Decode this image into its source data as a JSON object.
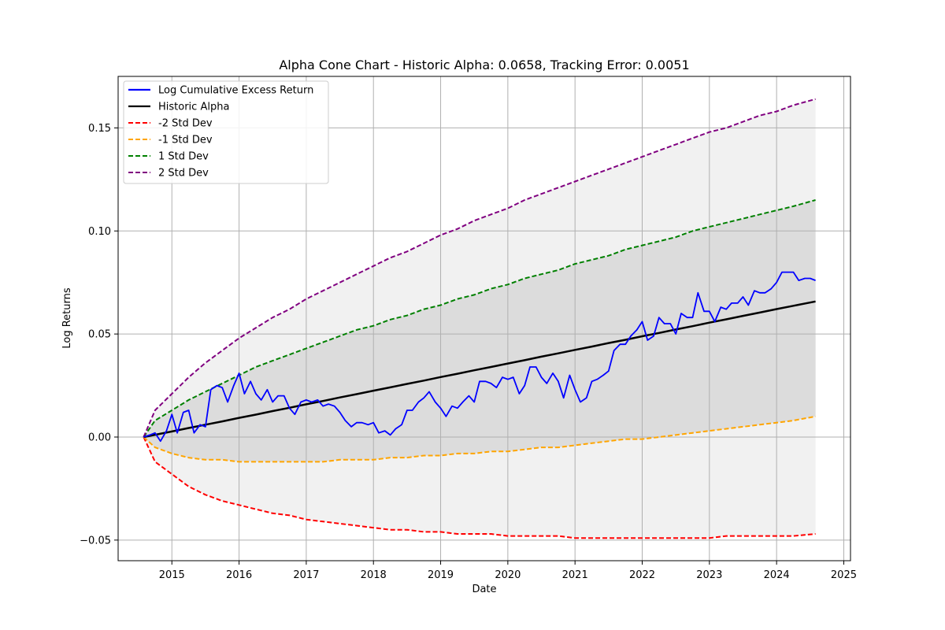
{
  "chart_data": {
    "type": "line",
    "title": "Alpha Cone Chart - Historic Alpha: 0.0658, Tracking Error: 0.0051",
    "xlabel": "Date",
    "ylabel": "Log Returns",
    "xlim": [
      2014.2,
      2025.1
    ],
    "ylim": [
      -0.06,
      0.175
    ],
    "x_ticks": [
      2015,
      2016,
      2017,
      2018,
      2019,
      2020,
      2021,
      2022,
      2023,
      2024,
      2025
    ],
    "x_tick_labels": [
      "2015",
      "2016",
      "2017",
      "2018",
      "2019",
      "2020",
      "2021",
      "2022",
      "2023",
      "2024",
      "2025"
    ],
    "y_ticks": [
      -0.05,
      0.0,
      0.05,
      0.1,
      0.15
    ],
    "y_tick_labels": [
      "−0.05",
      "0.00",
      "0.05",
      "0.10",
      "0.15"
    ],
    "grid": true,
    "legend_position": "upper-left",
    "x": [
      2014.58,
      2014.75,
      2015.0,
      2015.25,
      2015.5,
      2015.75,
      2016.0,
      2016.25,
      2016.5,
      2016.75,
      2017.0,
      2017.25,
      2017.5,
      2017.75,
      2018.0,
      2018.25,
      2018.5,
      2018.75,
      2019.0,
      2019.25,
      2019.5,
      2019.75,
      2020.0,
      2020.25,
      2020.5,
      2020.75,
      2021.0,
      2021.25,
      2021.5,
      2021.75,
      2022.0,
      2022.25,
      2022.5,
      2022.75,
      2023.0,
      2023.25,
      2023.5,
      2023.75,
      2024.0,
      2024.25,
      2024.58
    ],
    "series": [
      {
        "name": "Log Cumulative Excess Return",
        "color": "#0000ff",
        "style": "solid",
        "x": [
          2014.58,
          2014.67,
          2014.75,
          2014.83,
          2014.92,
          2015.0,
          2015.08,
          2015.17,
          2015.25,
          2015.33,
          2015.42,
          2015.5,
          2015.58,
          2015.67,
          2015.75,
          2015.83,
          2015.92,
          2016.0,
          2016.08,
          2016.17,
          2016.25,
          2016.33,
          2016.42,
          2016.5,
          2016.58,
          2016.67,
          2016.75,
          2016.83,
          2016.92,
          2017.0,
          2017.08,
          2017.17,
          2017.25,
          2017.33,
          2017.42,
          2017.5,
          2017.58,
          2017.67,
          2017.75,
          2017.83,
          2017.92,
          2018.0,
          2018.08,
          2018.17,
          2018.25,
          2018.33,
          2018.42,
          2018.5,
          2018.58,
          2018.67,
          2018.75,
          2018.83,
          2018.92,
          2019.0,
          2019.08,
          2019.17,
          2019.25,
          2019.33,
          2019.42,
          2019.5,
          2019.58,
          2019.67,
          2019.75,
          2019.83,
          2019.92,
          2020.0,
          2020.08,
          2020.17,
          2020.25,
          2020.33,
          2020.42,
          2020.5,
          2020.58,
          2020.67,
          2020.75,
          2020.83,
          2020.92,
          2021.0,
          2021.08,
          2021.17,
          2021.25,
          2021.33,
          2021.42,
          2021.5,
          2021.58,
          2021.67,
          2021.75,
          2021.83,
          2021.92,
          2022.0,
          2022.08,
          2022.17,
          2022.25,
          2022.33,
          2022.42,
          2022.5,
          2022.58,
          2022.67,
          2022.75,
          2022.83,
          2022.92,
          2023.0,
          2023.08,
          2023.17,
          2023.25,
          2023.33,
          2023.42,
          2023.5,
          2023.58,
          2023.67,
          2023.75,
          2023.83,
          2023.92,
          2024.0,
          2024.08,
          2024.17,
          2024.25,
          2024.33,
          2024.42,
          2024.5,
          2024.58
        ],
        "values": [
          0.0,
          0.001,
          0.002,
          -0.002,
          0.003,
          0.011,
          0.002,
          0.012,
          0.013,
          0.002,
          0.006,
          0.005,
          0.023,
          0.025,
          0.024,
          0.017,
          0.025,
          0.031,
          0.021,
          0.027,
          0.021,
          0.018,
          0.023,
          0.017,
          0.02,
          0.02,
          0.014,
          0.011,
          0.017,
          0.018,
          0.017,
          0.018,
          0.015,
          0.016,
          0.015,
          0.012,
          0.008,
          0.005,
          0.007,
          0.007,
          0.006,
          0.007,
          0.002,
          0.003,
          0.001,
          0.004,
          0.006,
          0.013,
          0.013,
          0.017,
          0.019,
          0.022,
          0.017,
          0.014,
          0.01,
          0.015,
          0.014,
          0.017,
          0.02,
          0.017,
          0.027,
          0.027,
          0.026,
          0.024,
          0.029,
          0.028,
          0.029,
          0.021,
          0.025,
          0.034,
          0.034,
          0.029,
          0.026,
          0.031,
          0.027,
          0.019,
          0.03,
          0.023,
          0.017,
          0.019,
          0.027,
          0.028,
          0.03,
          0.032,
          0.042,
          0.045,
          0.045,
          0.049,
          0.052,
          0.056,
          0.047,
          0.049,
          0.058,
          0.055,
          0.055,
          0.05,
          0.06,
          0.058,
          0.058,
          0.07,
          0.061,
          0.061,
          0.056,
          0.063,
          0.062,
          0.065,
          0.065,
          0.068,
          0.064,
          0.071,
          0.07,
          0.07,
          0.072,
          0.075,
          0.08,
          0.08,
          0.08,
          0.076,
          0.077,
          0.077,
          0.076
        ]
      },
      {
        "name": "Historic Alpha",
        "color": "#000000",
        "style": "solid",
        "values": [
          0.0,
          0.0011,
          0.0027,
          0.0044,
          0.006,
          0.0076,
          0.0093,
          0.0109,
          0.0126,
          0.0142,
          0.0159,
          0.0175,
          0.0192,
          0.0208,
          0.0225,
          0.0241,
          0.0258,
          0.0274,
          0.0291,
          0.0307,
          0.0324,
          0.034,
          0.0357,
          0.0373,
          0.039,
          0.0406,
          0.0423,
          0.0439,
          0.0456,
          0.0472,
          0.0489,
          0.0505,
          0.0522,
          0.0538,
          0.0555,
          0.0571,
          0.0588,
          0.0604,
          0.0621,
          0.0637,
          0.0658
        ]
      },
      {
        "name": "-2 Std Dev",
        "color": "#ff0000",
        "style": "dashed",
        "values": [
          0.0,
          -0.012,
          -0.018,
          -0.024,
          -0.028,
          -0.031,
          -0.033,
          -0.035,
          -0.037,
          -0.038,
          -0.04,
          -0.041,
          -0.042,
          -0.043,
          -0.044,
          -0.045,
          -0.045,
          -0.046,
          -0.046,
          -0.047,
          -0.047,
          -0.047,
          -0.048,
          -0.048,
          -0.048,
          -0.048,
          -0.049,
          -0.049,
          -0.049,
          -0.049,
          -0.049,
          -0.049,
          -0.049,
          -0.049,
          -0.049,
          -0.048,
          -0.048,
          -0.048,
          -0.048,
          -0.048,
          -0.047
        ]
      },
      {
        "name": "-1 Std Dev",
        "color": "#ffa500",
        "style": "dashed",
        "values": [
          0.0,
          -0.005,
          -0.008,
          -0.01,
          -0.011,
          -0.011,
          -0.012,
          -0.012,
          -0.012,
          -0.012,
          -0.012,
          -0.012,
          -0.011,
          -0.011,
          -0.011,
          -0.01,
          -0.01,
          -0.009,
          -0.009,
          -0.008,
          -0.008,
          -0.007,
          -0.007,
          -0.006,
          -0.005,
          -0.005,
          -0.004,
          -0.003,
          -0.002,
          -0.001,
          -0.001,
          0.0,
          0.001,
          0.002,
          0.003,
          0.004,
          0.005,
          0.006,
          0.007,
          0.008,
          0.01
        ]
      },
      {
        "name": "1 Std Dev",
        "color": "#008000",
        "style": "dashed",
        "values": [
          0.0,
          0.008,
          0.013,
          0.018,
          0.022,
          0.026,
          0.03,
          0.034,
          0.037,
          0.04,
          0.043,
          0.046,
          0.049,
          0.052,
          0.054,
          0.057,
          0.059,
          0.062,
          0.064,
          0.067,
          0.069,
          0.072,
          0.074,
          0.077,
          0.079,
          0.081,
          0.084,
          0.086,
          0.088,
          0.091,
          0.093,
          0.095,
          0.097,
          0.1,
          0.102,
          0.104,
          0.106,
          0.108,
          0.11,
          0.112,
          0.115
        ]
      },
      {
        "name": "2 Std Dev",
        "color": "#800080",
        "style": "dashed",
        "values": [
          0.0,
          0.013,
          0.021,
          0.029,
          0.036,
          0.042,
          0.048,
          0.053,
          0.058,
          0.062,
          0.067,
          0.071,
          0.075,
          0.079,
          0.083,
          0.087,
          0.09,
          0.094,
          0.098,
          0.101,
          0.105,
          0.108,
          0.111,
          0.115,
          0.118,
          0.121,
          0.124,
          0.127,
          0.13,
          0.133,
          0.136,
          0.139,
          0.142,
          0.145,
          0.148,
          0.15,
          0.153,
          0.156,
          0.158,
          0.161,
          0.164
        ]
      }
    ],
    "bands": [
      {
        "between": [
          "-2 Std Dev",
          "2 Std Dev"
        ],
        "color": "#f1f1f1"
      },
      {
        "between": [
          "-1 Std Dev",
          "1 Std Dev"
        ],
        "color": "#dcdcdc"
      }
    ]
  }
}
